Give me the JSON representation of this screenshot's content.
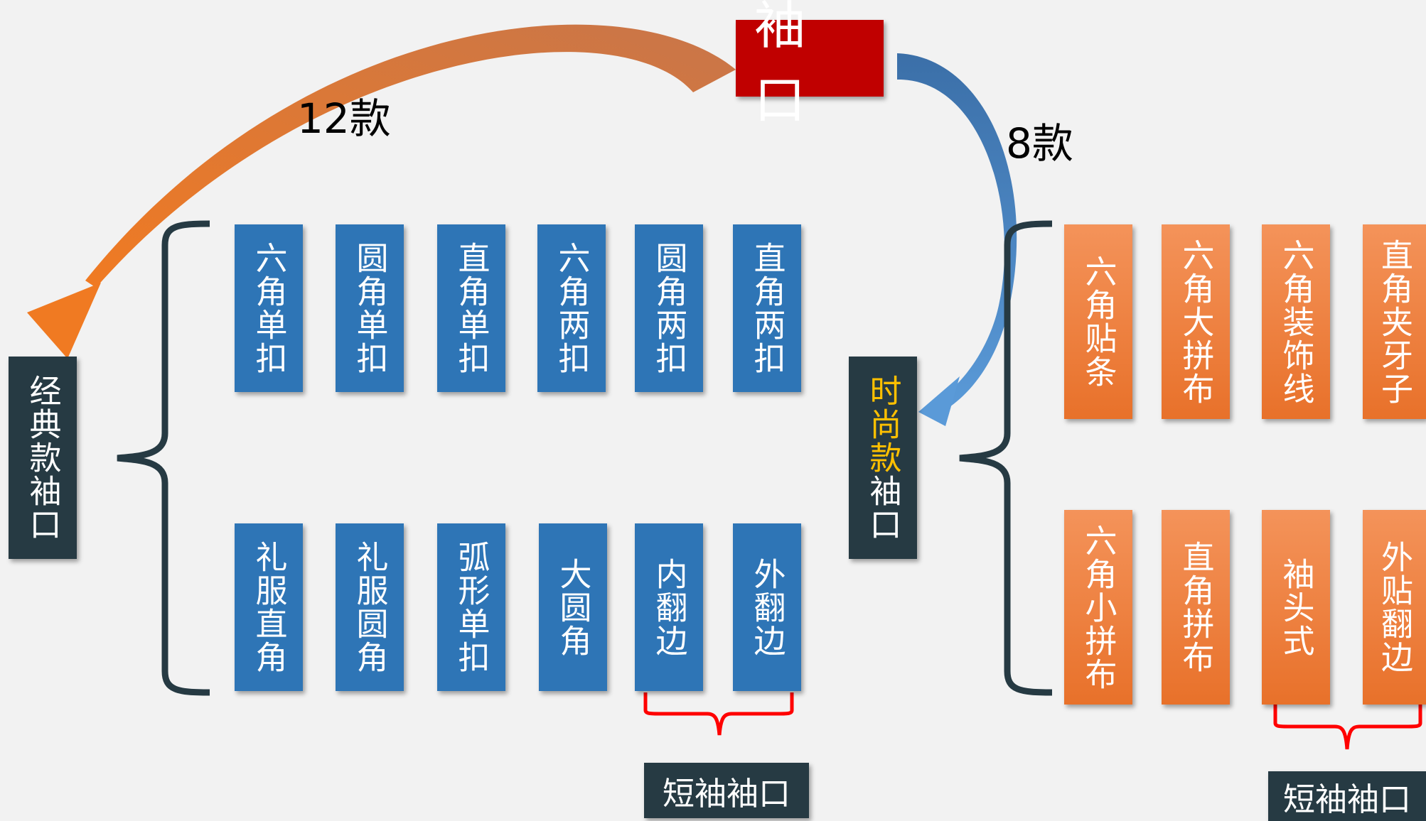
{
  "root": {
    "label": "袖口"
  },
  "counts": {
    "classic": "12款",
    "fashion": "8款"
  },
  "classic": {
    "label": "经典款袖口",
    "row1": [
      "六角单扣",
      "圆角单扣",
      "直角单扣",
      "六角两扣",
      "圆角两扣",
      "直角两扣"
    ],
    "row2": [
      "礼服直角",
      "礼服圆角",
      "弧形单扣",
      "大圆角",
      "内翻边",
      "外翻边"
    ],
    "short_label": "短袖袖口"
  },
  "fashion": {
    "label_highlight": "时尚款",
    "label_rest": "袖口",
    "row1": [
      "六角贴条",
      "六角大拼布",
      "六角装饰线",
      "直角夹牙子"
    ],
    "row2": [
      "六角小拼布",
      "直角拼布",
      "袖头式",
      "外贴翻边"
    ],
    "short_label": "短袖袖口"
  },
  "colors": {
    "root": "#c00000",
    "classic_box": "#2e75b6",
    "fashion_box": "#ed7d31",
    "label_box": "#263a43",
    "arrow_left": "#e8712a",
    "arrow_right": "#2e75b6",
    "highlight": "#ffc000",
    "short_brace": "#ff0000"
  }
}
